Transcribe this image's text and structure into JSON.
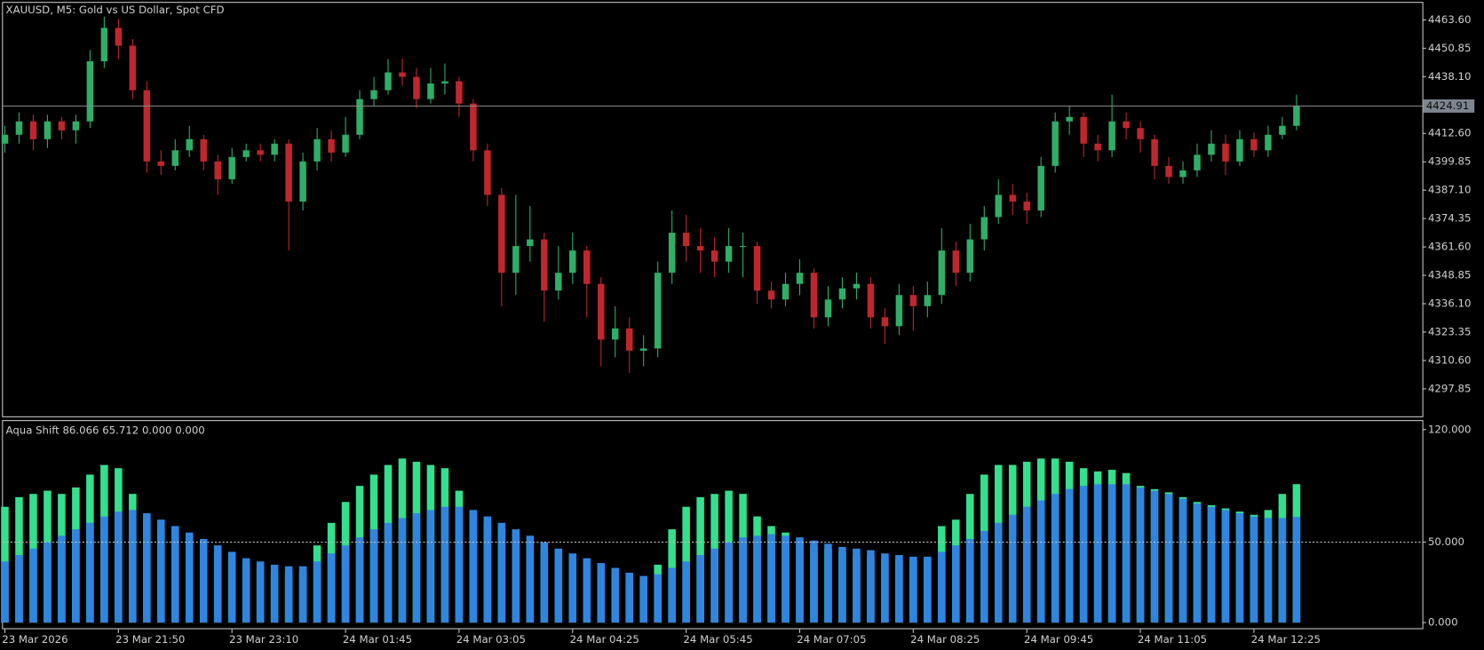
{
  "chart_data": [
    {
      "type": "candlestick",
      "title": "XAUUSD, M5:  Gold vs US Dollar, Spot CFD",
      "categories": [
        "23 Mar 2026",
        null,
        null,
        null,
        null,
        null,
        null,
        null,
        "23 Mar 21:50",
        null,
        null,
        null,
        null,
        null,
        null,
        null,
        "23 Mar 23:10",
        null,
        null,
        null,
        null,
        null,
        null,
        null,
        "24 Mar 01:45",
        null,
        null,
        null,
        null,
        null,
        null,
        null,
        "24 Mar 03:05",
        null,
        null,
        null,
        null,
        null,
        null,
        null,
        "24 Mar 04:25",
        null,
        null,
        null,
        null,
        null,
        null,
        null,
        "24 Mar 05:45",
        null,
        null,
        null,
        null,
        null,
        null,
        null,
        "24 Mar 07:05",
        null,
        null,
        null,
        null,
        null,
        null,
        null,
        "24 Mar 08:25",
        null,
        null,
        null,
        null,
        null,
        null,
        null,
        "24 Mar 09:45",
        null,
        null,
        null,
        null,
        null,
        null,
        null,
        "24 Mar 11:05",
        null,
        null,
        null,
        null,
        null,
        null,
        null,
        "24 Mar 12:25",
        null,
        null,
        null
      ],
      "open": [
        4408,
        4412,
        4418,
        4410,
        4418,
        4414,
        4418,
        4445,
        4460,
        4452,
        4432,
        4400,
        4398,
        4405,
        4410,
        4400,
        4392,
        4402,
        4405,
        4403,
        4408,
        4382,
        4400,
        4410,
        4404,
        4412,
        4428,
        4432,
        4440,
        4438,
        4428,
        4435,
        4436,
        4426,
        4405,
        4385,
        4350,
        4362,
        4365,
        4342,
        4350,
        4360,
        4345,
        4320,
        4325,
        4315,
        4316,
        4350,
        4368,
        4362,
        4360,
        4355,
        4362,
        4362,
        4342,
        4338,
        4345,
        4350,
        4330,
        4338,
        4343,
        4345,
        4330,
        4326,
        4340,
        4335,
        4340,
        4360,
        4350,
        4365,
        4375,
        4385,
        4382,
        4378,
        4398,
        4418,
        4420,
        4408,
        4405,
        4418,
        4415,
        4410,
        4398,
        4393,
        4396,
        4403,
        4408,
        4400,
        4410,
        4405,
        4412,
        4416
      ],
      "high": [
        4416,
        4422,
        4421,
        4421,
        4420,
        4421,
        4450,
        4465,
        4464,
        4455,
        4436,
        4405,
        4410,
        4416,
        4412,
        4403,
        4406,
        4408,
        4408,
        4410,
        4410,
        4404,
        4415,
        4414,
        4420,
        4432,
        4438,
        4446,
        4446,
        4442,
        4442,
        4444,
        4438,
        4428,
        4408,
        4388,
        4385,
        4380,
        4368,
        4362,
        4368,
        4362,
        4348,
        4335,
        4330,
        4322,
        4355,
        4378,
        4376,
        4370,
        4366,
        4370,
        4368,
        4364,
        4346,
        4350,
        4356,
        4352,
        4344,
        4348,
        4350,
        4348,
        4334,
        4345,
        4344,
        4346,
        4370,
        4364,
        4372,
        4380,
        4392,
        4390,
        4386,
        4402,
        4422,
        4425,
        4422,
        4412,
        4430,
        4422,
        4418,
        4412,
        4402,
        4400,
        4408,
        4414,
        4412,
        4414,
        4413,
        4416,
        4420,
        4430
      ],
      "low": [
        4404,
        4408,
        4405,
        4406,
        4410,
        4408,
        4415,
        4442,
        4446,
        4428,
        4395,
        4394,
        4396,
        4402,
        4396,
        4385,
        4390,
        4400,
        4400,
        4400,
        4360,
        4378,
        4396,
        4400,
        4402,
        4410,
        4425,
        4430,
        4434,
        4424,
        4426,
        4430,
        4420,
        4400,
        4380,
        4335,
        4340,
        4355,
        4328,
        4338,
        4345,
        4330,
        4308,
        4312,
        4305,
        4308,
        4312,
        4345,
        4355,
        4350,
        4348,
        4350,
        4348,
        4336,
        4334,
        4335,
        4340,
        4325,
        4326,
        4334,
        4338,
        4325,
        4318,
        4322,
        4324,
        4330,
        4336,
        4344,
        4346,
        4360,
        4372,
        4376,
        4372,
        4375,
        4395,
        4412,
        4402,
        4400,
        4402,
        4410,
        4404,
        4392,
        4390,
        4390,
        4393,
        4400,
        4394,
        4398,
        4402,
        4402,
        4410,
        4414
      ],
      "close": [
        4412,
        4418,
        4410,
        4418,
        4414,
        4418,
        4445,
        4460,
        4452,
        4432,
        4400,
        4398,
        4405,
        4410,
        4400,
        4392,
        4402,
        4405,
        4403,
        4408,
        4382,
        4400,
        4410,
        4404,
        4412,
        4428,
        4432,
        4440,
        4438,
        4428,
        4435,
        4436,
        4426,
        4405,
        4385,
        4350,
        4362,
        4365,
        4342,
        4350,
        4360,
        4345,
        4320,
        4325,
        4315,
        4316,
        4350,
        4368,
        4362,
        4360,
        4355,
        4362,
        4362,
        4342,
        4338,
        4345,
        4350,
        4330,
        4338,
        4343,
        4345,
        4330,
        4326,
        4340,
        4335,
        4340,
        4360,
        4350,
        4365,
        4375,
        4385,
        4382,
        4378,
        4398,
        4418,
        4420,
        4408,
        4405,
        4418,
        4415,
        4410,
        4398,
        4393,
        4396,
        4403,
        4408,
        4400,
        4410,
        4405,
        4412,
        4416,
        4424.91
      ],
      "up_color": "#2fae68",
      "down_color": "#c0272d",
      "ylim": [
        4285.1,
        4471.25
      ],
      "yticks": [
        {
          "value": 4463.6,
          "label": "4463.60"
        },
        4450.85,
        {
          "value": 4438.1,
          "label": "4438.10"
        },
        {
          "value": 4412.6,
          "label": "4412.60"
        },
        4399.85,
        {
          "value": 4387.1,
          "label": "4387.10"
        },
        4374.35,
        {
          "value": 4361.6,
          "label": "4361.60"
        },
        4348.85,
        {
          "value": 4336.1,
          "label": "4336.10"
        },
        4323.35,
        {
          "value": 4310.6,
          "label": "4310.60"
        },
        4297.85
      ]
    },
    {
      "type": "bar",
      "title": "Aqua Shift 86.066 65.712 0.000 0.000",
      "series": [
        {
          "color": "#33e08e",
          "values": [
            72,
            78,
            80,
            82,
            80,
            84,
            92,
            98,
            96,
            80,
            66,
            60,
            56,
            52,
            48,
            44,
            40,
            36,
            34,
            32,
            31,
            32,
            48,
            62,
            75,
            85,
            92,
            98,
            102,
            100,
            98,
            96,
            82,
            68,
            62,
            58,
            55,
            50,
            46,
            42,
            39,
            36,
            33,
            30,
            28,
            26,
            36,
            58,
            72,
            78,
            80,
            82,
            80,
            66,
            60,
            56,
            50,
            48,
            46,
            44,
            42,
            41,
            40,
            39,
            39,
            40,
            60,
            64,
            80,
            92,
            98,
            98,
            100,
            102,
            102,
            100,
            96,
            94,
            95,
            93,
            85,
            83,
            81,
            78,
            75,
            73,
            71,
            69,
            67,
            70,
            80,
            86.066
          ]
        },
        {
          "color": "#2f86e0",
          "values": [
            38,
            42,
            46,
            50,
            54,
            58,
            62,
            66,
            69,
            70,
            68,
            64,
            60,
            56,
            52,
            48,
            44,
            40,
            38,
            36,
            35,
            35,
            38,
            43,
            48,
            53,
            58,
            62,
            65,
            68,
            70,
            72,
            72,
            70,
            66,
            62,
            58,
            54,
            50,
            46,
            43,
            40,
            37,
            34,
            31,
            29,
            30,
            34,
            38,
            42,
            46,
            50,
            53,
            54,
            55,
            54,
            53,
            51,
            49,
            47,
            46,
            45,
            43,
            42,
            41,
            41,
            44,
            48,
            52,
            57,
            62,
            67,
            72,
            76,
            80,
            83,
            85,
            86,
            86,
            86,
            84,
            82,
            80,
            77,
            74,
            72,
            70,
            68,
            66,
            65,
            65,
            65.712
          ]
        }
      ],
      "levels": [
        50
      ],
      "ylim": [
        -4.1,
        125.9
      ],
      "yticks": [
        {
          "value": 0,
          "label": "0.000"
        },
        {
          "value": 50,
          "label": "50.000"
        },
        {
          "value": 120,
          "label": "120.000"
        }
      ]
    }
  ]
}
